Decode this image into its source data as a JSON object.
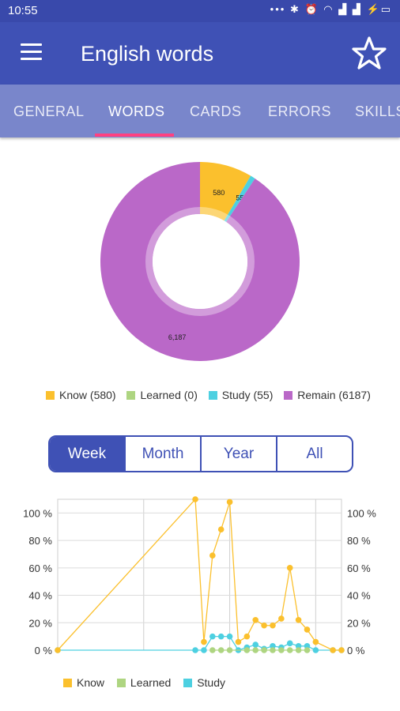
{
  "status_bar": {
    "time": "10:55",
    "icons": [
      "dots-icon",
      "bluetooth-icon",
      "alarm-icon",
      "wifi-icon",
      "signal-icon",
      "signal-icon",
      "battery-charging-icon"
    ]
  },
  "app_bar": {
    "title": "English words",
    "menu_icon": "menu-icon",
    "favorite_icon": "star-outline-icon"
  },
  "tabs": [
    {
      "label": "GENERAL",
      "active": false
    },
    {
      "label": "WORDS",
      "active": true
    },
    {
      "label": "CARDS",
      "active": false
    },
    {
      "label": "ERRORS",
      "active": false
    },
    {
      "label": "SKILLS",
      "active": false
    }
  ],
  "colors": {
    "primary": "#3f51b5",
    "status": "#3949ab",
    "tabs": "#7986cb",
    "accent": "#ff4081",
    "know": "#fbc02d",
    "learned": "#aed581",
    "study": "#4dd0e1",
    "remain": "#ba68c8"
  },
  "period_selector": {
    "options": [
      "Week",
      "Month",
      "Year",
      "All"
    ],
    "selected": "Week"
  },
  "chart_data": [
    {
      "type": "pie",
      "style": "donut",
      "slices": [
        {
          "label": "Know",
          "value": 580,
          "color": "#fbc02d",
          "shown": "580"
        },
        {
          "label": "Learned",
          "value": 0,
          "color": "#aed581",
          "shown": ""
        },
        {
          "label": "Study",
          "value": 55,
          "color": "#4dd0e1",
          "shown": "55"
        },
        {
          "label": "Remain",
          "value": 6187,
          "color": "#ba68c8",
          "shown": "6,187"
        }
      ],
      "legend": [
        "Know (580)",
        "Learned (0)",
        "Study (55)",
        "Remain (6187)"
      ],
      "legend_position": "bottom"
    },
    {
      "type": "line",
      "ylim": [
        0,
        100
      ],
      "yticks": [
        "0 %",
        "20 %",
        "40 %",
        "60 %",
        "80 %",
        "100 %"
      ],
      "grid": true,
      "legend": [
        "Know",
        "Learned",
        "Study"
      ],
      "legend_position": "bottom",
      "series": [
        {
          "name": "Know",
          "color": "#fbc02d",
          "points": [
            [
              0,
              0
            ],
            [
              16,
              110
            ],
            [
              17,
              6
            ],
            [
              18,
              69
            ],
            [
              19,
              88
            ],
            [
              20,
              108
            ],
            [
              21,
              6
            ],
            [
              22,
              10
            ],
            [
              23,
              22
            ],
            [
              24,
              18
            ],
            [
              25,
              18
            ],
            [
              26,
              23
            ],
            [
              27,
              60
            ],
            [
              28,
              22
            ],
            [
              29,
              15
            ],
            [
              30,
              6
            ],
            [
              32,
              0
            ],
            [
              33,
              0
            ]
          ]
        },
        {
          "name": "Learned",
          "color": "#aed581",
          "points": [
            [
              18,
              0
            ],
            [
              19,
              0
            ],
            [
              20,
              0
            ],
            [
              22,
              0
            ],
            [
              23,
              0
            ],
            [
              24,
              0
            ],
            [
              25,
              0
            ],
            [
              26,
              0
            ],
            [
              27,
              0
            ],
            [
              28,
              0
            ],
            [
              29,
              0
            ]
          ]
        },
        {
          "name": "Study",
          "color": "#4dd0e1",
          "points": [
            [
              0,
              0
            ],
            [
              16,
              0
            ],
            [
              17,
              0
            ],
            [
              18,
              10
            ],
            [
              19,
              10
            ],
            [
              20,
              10
            ],
            [
              21,
              0
            ],
            [
              22,
              2
            ],
            [
              23,
              4
            ],
            [
              24,
              1
            ],
            [
              25,
              3
            ],
            [
              26,
              2
            ],
            [
              27,
              5
            ],
            [
              28,
              3
            ],
            [
              29,
              3
            ],
            [
              30,
              0
            ],
            [
              32,
              0
            ],
            [
              33,
              0
            ]
          ]
        }
      ]
    }
  ]
}
